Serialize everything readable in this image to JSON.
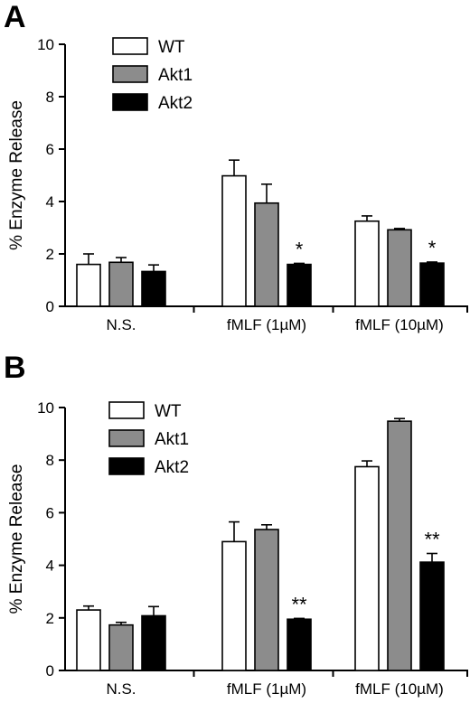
{
  "chart_data": [
    {
      "panel": "A",
      "type": "bar",
      "ylabel": "% Enzyme Release",
      "ylim": [
        0,
        10
      ],
      "yticks": [
        0,
        2,
        4,
        6,
        8,
        10
      ],
      "categories": [
        "N.S.",
        "fMLF (1µM)",
        "fMLF (10µM)"
      ],
      "series": [
        {
          "name": "WT",
          "color": "#ffffff",
          "values": [
            1.6,
            4.98,
            3.25
          ],
          "errors": [
            0.4,
            0.6,
            0.2
          ]
        },
        {
          "name": "Akt1",
          "color": "#8c8c8c",
          "values": [
            1.68,
            3.94,
            2.92
          ],
          "errors": [
            0.18,
            0.72,
            0.05
          ]
        },
        {
          "name": "Akt2",
          "color": "#000000",
          "values": [
            1.33,
            1.6,
            1.65
          ],
          "errors": [
            0.25,
            0.04,
            0.04
          ]
        }
      ],
      "annotations": [
        {
          "category": 1,
          "series": 2,
          "text": "*"
        },
        {
          "category": 2,
          "series": 2,
          "text": "*"
        }
      ],
      "legend": "top-left"
    },
    {
      "panel": "B",
      "type": "bar",
      "ylabel": "% Enzyme Release",
      "ylim": [
        0,
        10
      ],
      "yticks": [
        0,
        2,
        4,
        6,
        8,
        10
      ],
      "categories": [
        "N.S.",
        "fMLF (1µM)",
        "fMLF (10µM)"
      ],
      "series": [
        {
          "name": "WT",
          "color": "#ffffff",
          "values": [
            2.3,
            4.9,
            7.75
          ],
          "errors": [
            0.15,
            0.75,
            0.22
          ]
        },
        {
          "name": "Akt1",
          "color": "#8c8c8c",
          "values": [
            1.73,
            5.36,
            9.48
          ],
          "errors": [
            0.1,
            0.18,
            0.1
          ]
        },
        {
          "name": "Akt2",
          "color": "#000000",
          "values": [
            2.08,
            1.95,
            4.12
          ],
          "errors": [
            0.35,
            0.03,
            0.33
          ]
        }
      ],
      "annotations": [
        {
          "category": 1,
          "series": 2,
          "text": "**"
        },
        {
          "category": 2,
          "series": 2,
          "text": "**"
        }
      ],
      "legend": "top-left"
    }
  ]
}
